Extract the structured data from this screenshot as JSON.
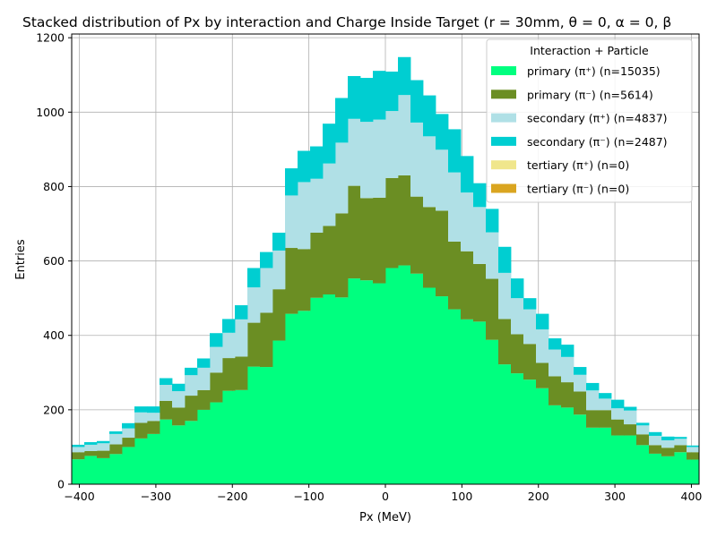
{
  "chart_data": {
    "type": "bar",
    "stacked": true,
    "title": "Stacked distribution of Px by interaction and Charge Inside Target (r = 30mm, θ = 0, α = 0, β",
    "xlabel": "Px (MeV)",
    "ylabel": "Entries",
    "xlim": [
      -410,
      410
    ],
    "ylim": [
      0,
      1210
    ],
    "xticks": [
      -400,
      -300,
      -200,
      -100,
      0,
      100,
      200,
      300,
      400
    ],
    "yticks": [
      0,
      200,
      400,
      600,
      800,
      1000,
      1200
    ],
    "grid": true,
    "legend": {
      "title": "Interaction + Particle",
      "position": "top-right"
    },
    "bins": {
      "start": -410,
      "width": 16.4,
      "count": 50
    },
    "series": [
      {
        "name": "primary (π⁺) (n=15035)",
        "color": "#00ff7f",
        "values": [
          67,
          76,
          70,
          81,
          100,
          123,
          135,
          174,
          158,
          170,
          200,
          220,
          251,
          253,
          316,
          315,
          386,
          458,
          466,
          501,
          510,
          502,
          553,
          548,
          540,
          581,
          588,
          566,
          528,
          505,
          470,
          443,
          437,
          388,
          322,
          298,
          281,
          258,
          212,
          206,
          187,
          152,
          152,
          131,
          131,
          105,
          82,
          75,
          86,
          66
        ]
      },
      {
        "name": "primary (π⁻) (n=5614)",
        "color": "#6b8e23",
        "values": [
          19,
          13,
          20,
          26,
          25,
          42,
          35,
          50,
          48,
          68,
          53,
          80,
          88,
          90,
          118,
          146,
          138,
          177,
          166,
          175,
          184,
          226,
          249,
          221,
          230,
          242,
          242,
          207,
          217,
          230,
          182,
          183,
          155,
          164,
          122,
          105,
          96,
          68,
          78,
          68,
          62,
          47,
          47,
          43,
          30,
          29,
          23,
          23,
          19,
          20
        ]
      },
      {
        "name": "secondary (π⁺) (n=4837)",
        "color": "#b0e0e6",
        "values": [
          14,
          17,
          20,
          28,
          25,
          28,
          22,
          43,
          44,
          55,
          60,
          69,
          68,
          100,
          95,
          120,
          104,
          141,
          180,
          145,
          168,
          190,
          180,
          205,
          210,
          180,
          216,
          199,
          190,
          164,
          186,
          158,
          153,
          125,
          124,
          97,
          93,
          90,
          72,
          68,
          45,
          53,
          31,
          30,
          37,
          24,
          25,
          20,
          17,
          14
        ]
      },
      {
        "name": "secondary (π⁻) (n=2487)",
        "color": "#00ced1",
        "values": [
          6,
          7,
          6,
          7,
          14,
          16,
          17,
          18,
          20,
          20,
          25,
          37,
          37,
          38,
          52,
          43,
          48,
          73,
          84,
          87,
          107,
          120,
          115,
          118,
          131,
          106,
          102,
          114,
          110,
          96,
          116,
          98,
          64,
          63,
          70,
          53,
          30,
          42,
          30,
          33,
          21,
          20,
          15,
          23,
          10,
          7,
          10,
          10,
          5,
          4
        ]
      },
      {
        "name": "tertiary (π⁺) (n=0)",
        "color": "#f0e68c",
        "values": [
          0,
          0,
          0,
          0,
          0,
          0,
          0,
          0,
          0,
          0,
          0,
          0,
          0,
          0,
          0,
          0,
          0,
          0,
          0,
          0,
          0,
          0,
          0,
          0,
          0,
          0,
          0,
          0,
          0,
          0,
          0,
          0,
          0,
          0,
          0,
          0,
          0,
          0,
          0,
          0,
          0,
          0,
          0,
          0,
          0,
          0,
          0,
          0,
          0,
          0
        ]
      },
      {
        "name": "tertiary (π⁻) (n=0)",
        "color": "#daa520",
        "values": [
          0,
          0,
          0,
          0,
          0,
          0,
          0,
          0,
          0,
          0,
          0,
          0,
          0,
          0,
          0,
          0,
          0,
          0,
          0,
          0,
          0,
          0,
          0,
          0,
          0,
          0,
          0,
          0,
          0,
          0,
          0,
          0,
          0,
          0,
          0,
          0,
          0,
          0,
          0,
          0,
          0,
          0,
          0,
          0,
          0,
          0,
          0,
          0,
          0,
          0
        ]
      }
    ]
  }
}
